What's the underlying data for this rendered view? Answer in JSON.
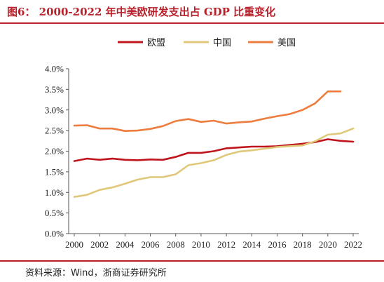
{
  "page": {
    "title": "图6：  2000-2022 年中美欧研发支出占 GDP 比重变化",
    "source": "资料来源：Wind，浙商证券研究所"
  },
  "chart_data": {
    "type": "line",
    "title": "",
    "xlabel": "",
    "ylabel": "",
    "x": [
      2000,
      2001,
      2002,
      2003,
      2004,
      2005,
      2006,
      2007,
      2008,
      2009,
      2010,
      2011,
      2012,
      2013,
      2014,
      2015,
      2016,
      2017,
      2018,
      2019,
      2020,
      2021,
      2022
    ],
    "x_ticks": [
      "2000",
      "2002",
      "2004",
      "2006",
      "2008",
      "2010",
      "2012",
      "2014",
      "2016",
      "2018",
      "2020",
      "2022"
    ],
    "y_ticks": [
      "0.0%",
      "0.5%",
      "1.0%",
      "1.5%",
      "2.0%",
      "2.5%",
      "3.0%",
      "3.5%",
      "4.0%"
    ],
    "ylim": [
      0,
      4.0
    ],
    "grid": false,
    "legend_position": "top",
    "series": [
      {
        "name": "欧盟",
        "color": "#c0141c",
        "values": [
          1.76,
          1.82,
          1.79,
          1.82,
          1.79,
          1.78,
          1.8,
          1.79,
          1.86,
          1.96,
          1.96,
          2.0,
          2.07,
          2.09,
          2.11,
          2.11,
          2.12,
          2.15,
          2.18,
          2.22,
          2.29,
          2.25,
          2.23
        ]
      },
      {
        "name": "中国",
        "color": "#e0c87a",
        "values": [
          0.89,
          0.94,
          1.06,
          1.12,
          1.21,
          1.31,
          1.37,
          1.37,
          1.44,
          1.66,
          1.71,
          1.78,
          1.91,
          1.99,
          2.02,
          2.06,
          2.1,
          2.12,
          2.14,
          2.24,
          2.4,
          2.43,
          2.55
        ]
      },
      {
        "name": "美国",
        "color": "#ec7d3e",
        "values": [
          2.62,
          2.63,
          2.55,
          2.55,
          2.49,
          2.5,
          2.54,
          2.61,
          2.73,
          2.78,
          2.71,
          2.74,
          2.67,
          2.7,
          2.72,
          2.79,
          2.85,
          2.9,
          3.0,
          3.16,
          3.45,
          3.45,
          null
        ]
      }
    ]
  }
}
